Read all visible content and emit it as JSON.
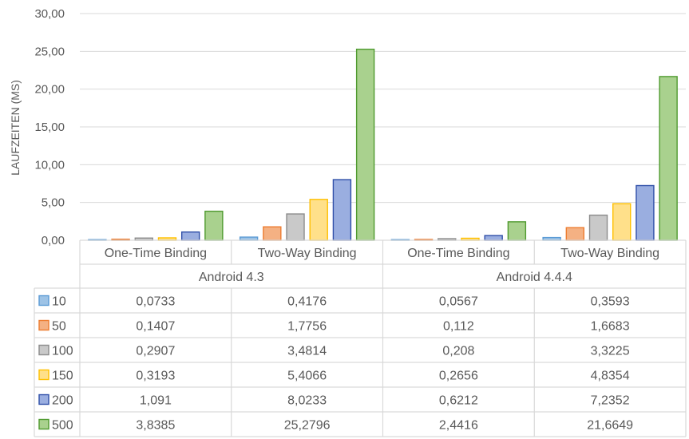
{
  "chart_data": {
    "type": "bar",
    "title": "",
    "ylabel": "LAUFZEITEN (MS)",
    "xlabel": "",
    "ylim": [
      0,
      30
    ],
    "y_ticks": [
      "0,00",
      "5,00",
      "10,00",
      "15,00",
      "20,00",
      "25,00",
      "30,00"
    ],
    "y_tick_values": [
      0,
      5,
      10,
      15,
      20,
      25,
      30
    ],
    "grid": true,
    "legend_placement": "data-table-left",
    "categories": [
      "One-Time Binding",
      "Two-Way Binding",
      "One-Time Binding",
      "Two-Way Binding"
    ],
    "category_groups": [
      {
        "label": "Android 4.3",
        "span": 2
      },
      {
        "label": "Android 4.4.4",
        "span": 2
      }
    ],
    "series": [
      {
        "name": "10",
        "color": "#9dc3e6",
        "border": "#5b9bd5",
        "values": [
          0.0733,
          0.4176,
          0.0567,
          0.3593
        ],
        "labels": [
          "0,0733",
          "0,4176",
          "0,0567",
          "0,3593"
        ]
      },
      {
        "name": "50",
        "color": "#f4b183",
        "border": "#ed7d31",
        "values": [
          0.1407,
          1.7756,
          0.112,
          1.6683
        ],
        "labels": [
          "0,1407",
          "1,7756",
          "0,112",
          "1,6683"
        ]
      },
      {
        "name": "100",
        "color": "#c9c9c9",
        "border": "#8c8c8c",
        "values": [
          0.2907,
          3.4814,
          0.208,
          3.3225
        ],
        "labels": [
          "0,2907",
          "3,4814",
          "0,208",
          "3,3225"
        ]
      },
      {
        "name": "150",
        "color": "#ffe08a",
        "border": "#ffc000",
        "values": [
          0.3193,
          5.4066,
          0.2656,
          4.8354
        ],
        "labels": [
          "0,3193",
          "5,4066",
          "0,2656",
          "4,8354"
        ]
      },
      {
        "name": "200",
        "color": "#9aaee0",
        "border": "#2f4fa8",
        "values": [
          1.091,
          8.0233,
          0.6212,
          7.2352
        ],
        "labels": [
          "1,091",
          "8,0233",
          "0,6212",
          "7,2352"
        ]
      },
      {
        "name": "500",
        "color": "#a9d18e",
        "border": "#4f9a2f",
        "values": [
          3.8385,
          25.2796,
          2.4416,
          21.6649
        ],
        "labels": [
          "3,8385",
          "25,2796",
          "2,4416",
          "21,6649"
        ]
      }
    ]
  }
}
